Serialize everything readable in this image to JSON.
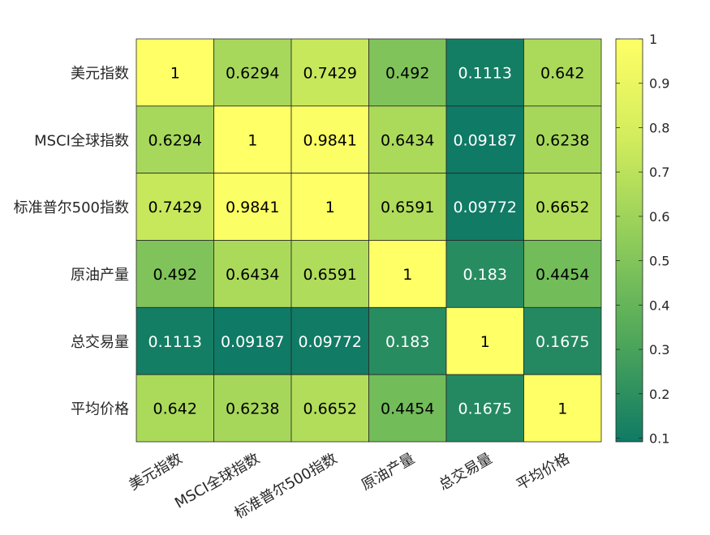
{
  "chart_data": {
    "type": "heatmap",
    "title": "",
    "xlabel": "",
    "ylabel": "",
    "labels": [
      "美元指数",
      "MSCI全球指数",
      "标准普尔500指数",
      "原油产量",
      "总交易量",
      "平均价格"
    ],
    "cells": [
      [
        "1",
        "0.6294",
        "0.7429",
        "0.492",
        "0.1113",
        "0.642"
      ],
      [
        "0.6294",
        "1",
        "0.9841",
        "0.6434",
        "0.09187",
        "0.6238"
      ],
      [
        "0.7429",
        "0.9841",
        "1",
        "0.6591",
        "0.09772",
        "0.6652"
      ],
      [
        "0.492",
        "0.6434",
        "0.6591",
        "1",
        "0.183",
        "0.4454"
      ],
      [
        "0.1113",
        "0.09187",
        "0.09772",
        "0.183",
        "1",
        "0.1675"
      ],
      [
        "0.642",
        "0.6238",
        "0.6652",
        "0.4454",
        "0.1675",
        "1"
      ]
    ],
    "colorbar": {
      "range": [
        0.0918,
        1
      ],
      "ticks": [
        "0.1",
        "0.2",
        "0.3",
        "0.4",
        "0.5",
        "0.6",
        "0.7",
        "0.8",
        "0.9",
        "1"
      ],
      "colors": [
        "#0f7a65",
        "#4ea75a",
        "#8fcc5a",
        "#d1ec5c",
        "#ffff66"
      ]
    },
    "grid": true,
    "legend": "right"
  }
}
